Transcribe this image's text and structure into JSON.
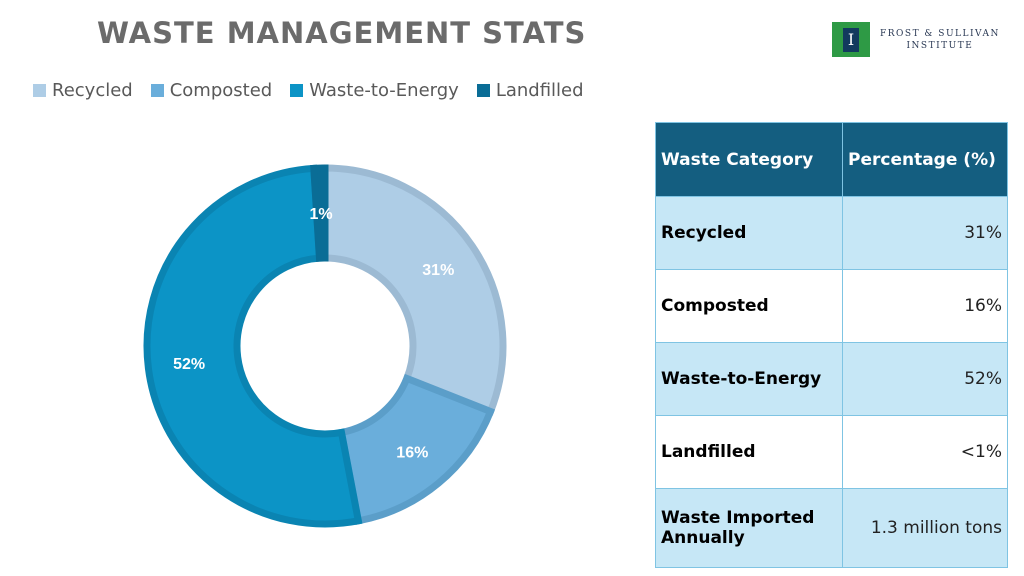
{
  "title": "WASTE MANAGEMENT STATS",
  "logo": {
    "glyph": "I",
    "line1": "FROST & SULLIVAN",
    "line2": "INSTITUTE"
  },
  "chart_data": {
    "type": "pie",
    "variant": "donut",
    "categories": [
      "Recycled",
      "Composted",
      "Waste-to-Energy",
      "Landfilled"
    ],
    "values": [
      31,
      16,
      52,
      1
    ],
    "data_labels": [
      "31%",
      "16%",
      "52%",
      "1%"
    ],
    "colors": [
      "#aecde6",
      "#6aaedb",
      "#0c94c6",
      "#0a6d96"
    ],
    "legend_placement": "top"
  },
  "table": {
    "headers": [
      "Waste Category",
      "Percentage (%)"
    ],
    "rows": [
      [
        "Recycled",
        "31%"
      ],
      [
        "Composted",
        "16%"
      ],
      [
        "Waste-to-Energy",
        "52%"
      ],
      [
        "Landfilled",
        "<1%"
      ],
      [
        "Waste Imported Annually",
        "1.3 million tons"
      ]
    ]
  }
}
